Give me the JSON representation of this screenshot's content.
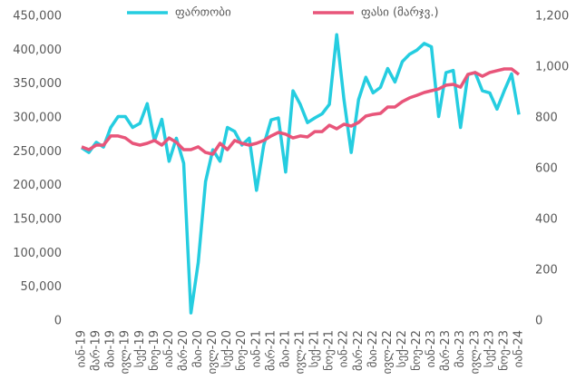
{
  "chart_data": {
    "type": "line",
    "categories": [
      "იან-19",
      null,
      "მარ-19",
      null,
      "მაი-19",
      null,
      "ივლ-19",
      null,
      "სექ-19",
      null,
      "ნოე-19",
      null,
      "იან-20",
      null,
      "მარ-20",
      null,
      "მაი-20",
      null,
      "ივლ-20",
      null,
      "სექ-20",
      null,
      "ნოე-20",
      null,
      "იან-21",
      null,
      "მარ-21",
      null,
      "მაი-21",
      null,
      "ივლ-21",
      null,
      "სექ-21",
      null,
      "ნოე-21",
      null,
      "იან-22",
      null,
      "მარ-22",
      null,
      "მაი-22",
      null,
      "ივლ-22",
      null,
      "სექ-22",
      null,
      "ნოე-22",
      null,
      "იან-23",
      null,
      "მარ-23",
      null,
      "მაი-23",
      null,
      "ივლ-23",
      null,
      "სექ-23",
      null,
      "ნოე-23",
      null,
      "იან-24"
    ],
    "series": [
      {
        "name": "ფართობი",
        "color": "#25cde0",
        "axis": "y",
        "values": [
          256000,
          249000,
          264000,
          257000,
          286000,
          302000,
          302000,
          286000,
          292000,
          321000,
          266000,
          298000,
          236000,
          270000,
          233000,
          12000,
          86000,
          206000,
          253000,
          236000,
          286000,
          280000,
          260000,
          270000,
          193000,
          260000,
          297000,
          300000,
          220000,
          340000,
          320000,
          293000,
          300000,
          306000,
          320000,
          423000,
          327000,
          249000,
          327000,
          360000,
          337000,
          345000,
          373000,
          353000,
          383000,
          394000,
          400000,
          410000,
          405000,
          302000,
          367000,
          370000,
          286000,
          364000,
          367000,
          340000,
          337000,
          313000,
          340000,
          365000,
          305000
        ]
      },
      {
        "name": "ფასი (მარჯვ.)",
        "color": "#e8557a",
        "axis": "y2",
        "values": [
          686,
          675,
          693,
          693,
          729,
          729,
          721,
          700,
          693,
          700,
          711,
          693,
          721,
          704,
          675,
          675,
          686,
          664,
          657,
          700,
          675,
          711,
          700,
          693,
          700,
          711,
          729,
          743,
          736,
          721,
          729,
          725,
          746,
          746,
          771,
          757,
          775,
          768,
          782,
          807,
          814,
          818,
          843,
          843,
          864,
          879,
          889,
          900,
          907,
          914,
          929,
          932,
          921,
          971,
          979,
          964,
          979,
          986,
          993,
          993,
          971
        ]
      }
    ],
    "ylim": [
      0,
      450000
    ],
    "yticks": [
      0,
      {
        "value": 50000,
        "label": "50,000"
      },
      {
        "value": 100000,
        "label": "100,000"
      },
      {
        "value": 150000,
        "label": "150,000"
      },
      {
        "value": 200000,
        "label": "200,000"
      },
      {
        "value": 250000,
        "label": "250,000"
      },
      {
        "value": 300000,
        "label": "300,000"
      },
      {
        "value": 350000,
        "label": "350,000"
      },
      {
        "value": 400000,
        "label": "400,000"
      },
      {
        "value": 450000,
        "label": "450,000"
      }
    ],
    "y2lim": [
      0,
      1200
    ],
    "y2ticks": [
      0,
      200,
      400,
      600,
      800,
      {
        "value": 1000,
        "label": "1,000"
      },
      {
        "value": 1200,
        "label": "1,200"
      }
    ],
    "grid": false,
    "legend": "top"
  }
}
